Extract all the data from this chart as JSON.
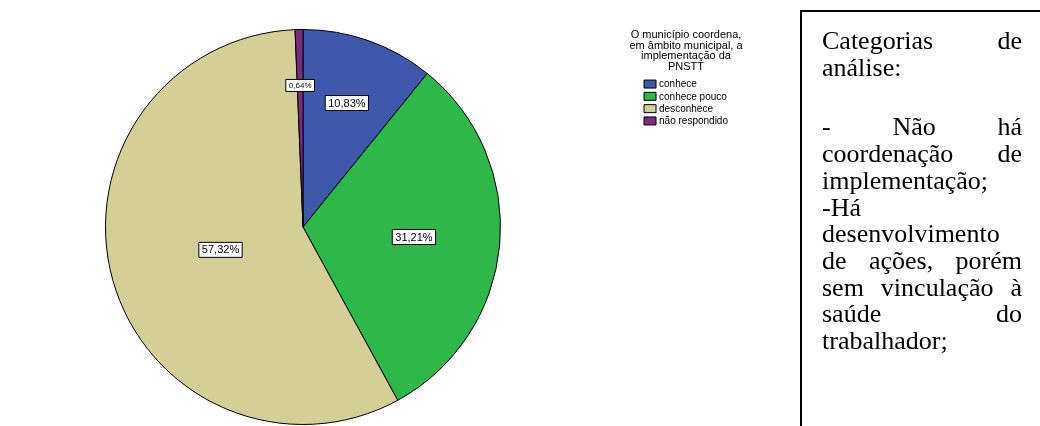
{
  "chart_data": {
    "type": "pie",
    "categories": [
      "conhece",
      "conhece pouco",
      "desconhece",
      "não respondido"
    ],
    "values": [
      10.83,
      31.21,
      57.32,
      0.64
    ],
    "colors": [
      "#3e58ac",
      "#2fb84a",
      "#d4ce97",
      "#7d2a7e"
    ],
    "value_labels": [
      "10,83%",
      "31,21%",
      "57,32%",
      "0,64%"
    ],
    "legend_title": "O município coordena, em âmbito municipal, a implementação da PNSTT",
    "legend": "top right",
    "annotations": [
      "Categorias de análise:",
      "- Não há coordenação de implementação;",
      "-Há desenvolvimento de ações, porém sem vinculação à saúde do trabalhador;"
    ]
  }
}
